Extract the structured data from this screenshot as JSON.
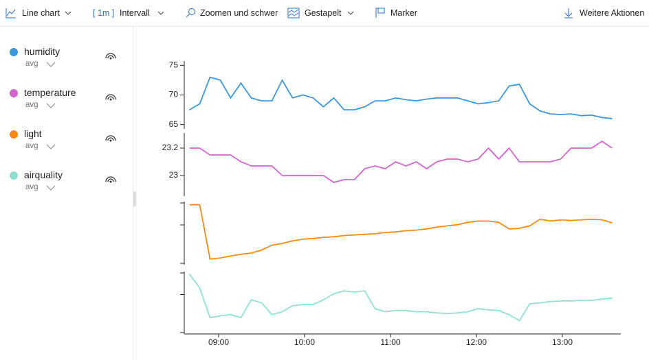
{
  "toolbar": {
    "chart_type": "Line chart",
    "interval_value": "[ 1m ]",
    "interval": "Intervall",
    "zoom": "Zoomen und schwenken",
    "stacked": "Gestapelt",
    "marker": "Marker",
    "more": "Weitere Aktionen"
  },
  "legend": [
    {
      "name": "humidity",
      "aggregate": "avg"
    },
    {
      "name": "temperature",
      "aggregate": "avg"
    },
    {
      "name": "light",
      "aggregate": "avg"
    },
    {
      "name": "airquality",
      "aggregate": "avg"
    }
  ],
  "chart_data": {
    "type": "line",
    "stacked": true,
    "x": [
      8.66,
      8.78,
      8.9,
      9.02,
      9.14,
      9.26,
      9.38,
      9.5,
      9.62,
      9.74,
      9.86,
      9.98,
      10.1,
      10.22,
      10.34,
      10.46,
      10.58,
      10.7,
      10.82,
      10.94,
      11.06,
      11.18,
      11.3,
      11.42,
      11.54,
      11.66,
      11.78,
      11.9,
      12.02,
      12.14,
      12.26,
      12.38,
      12.5,
      12.62,
      12.74,
      12.86,
      12.98,
      13.1,
      13.22,
      13.34,
      13.46,
      13.58
    ],
    "xlim": [
      8.6,
      13.68
    ],
    "xticks": [
      {
        "value": 9,
        "label": "09:00"
      },
      {
        "value": 10,
        "label": "10:00"
      },
      {
        "value": 11,
        "label": "11:00"
      },
      {
        "value": 12,
        "label": "12:00"
      },
      {
        "value": 13,
        "label": "13:00"
      }
    ],
    "series": [
      {
        "name": "humidity",
        "color": "#3a96dd",
        "ylim": [
          64.5,
          75.5
        ],
        "yticks": [
          65,
          70,
          75
        ],
        "values": [
          67.5,
          68.5,
          73,
          72.5,
          69.5,
          72,
          69.5,
          69,
          69,
          72.5,
          69.5,
          70,
          69.5,
          68,
          69.5,
          67.5,
          67.5,
          68,
          69,
          69,
          69.5,
          69.2,
          69,
          69.3,
          69.5,
          69.5,
          69.5,
          69,
          68.5,
          68.7,
          69,
          71.5,
          71.8,
          68.5,
          67.3,
          66.8,
          66.7,
          66.8,
          66.5,
          66.6,
          66.2,
          66
        ]
      },
      {
        "name": "temperature",
        "color": "#d363cf",
        "ylim": [
          22.86,
          23.3
        ],
        "yticks": [
          23,
          23.2
        ],
        "values": [
          23.2,
          23.2,
          23.15,
          23.15,
          23.15,
          23.1,
          23.07,
          23.07,
          23.07,
          23,
          23,
          23,
          23,
          23,
          22.95,
          22.97,
          22.97,
          23.05,
          23.07,
          23.05,
          23.1,
          23.07,
          23.1,
          23.05,
          23.1,
          23.12,
          23.12,
          23.1,
          23.12,
          23.2,
          23.12,
          23.2,
          23.1,
          23.1,
          23.1,
          23.1,
          23.12,
          23.2,
          23.2,
          23.2,
          23.25,
          23.2
        ]
      },
      {
        "name": "light",
        "color": "#f7890c",
        "ylim": [
          0,
          100
        ],
        "values": [
          97,
          97,
          7,
          9,
          12,
          15,
          17,
          22,
          30,
          33,
          37,
          40,
          41,
          43,
          44,
          46,
          47,
          48,
          49,
          51,
          52,
          54,
          55,
          57,
          60,
          62,
          64,
          68,
          70,
          70,
          68,
          57,
          58,
          62,
          73,
          70,
          72,
          71,
          72,
          73,
          72,
          67
        ]
      },
      {
        "name": "airquality",
        "color": "#8fe0d0",
        "ylim": [
          0,
          100
        ],
        "values": [
          98,
          75,
          25,
          28,
          30,
          25,
          55,
          50,
          30,
          35,
          45,
          47,
          47,
          55,
          65,
          70,
          68,
          70,
          40,
          35,
          37,
          37,
          35,
          35,
          33,
          32,
          33,
          35,
          40,
          38,
          37,
          30,
          20,
          48,
          50,
          52,
          53,
          53,
          54,
          54,
          56,
          58
        ]
      }
    ]
  }
}
